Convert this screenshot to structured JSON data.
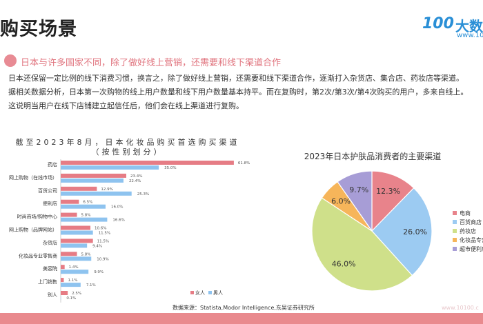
{
  "header": {
    "title": "购买场景",
    "logo_text": "大数",
    "logo_num": "100",
    "logo_url": "www.10"
  },
  "subheading": "日本与许多国家不同，除了做好线上营销，还需要和线下渠道合作",
  "paragraphs": [
    "日本还保留一定比例的线下消费习惯，换言之，除了做好线上营销，还需要和线下渠道合作，逐渐打入杂货店、集合店、药妆店等渠道。",
    "据相关数据分析，日本第一次购物的线上用户数量和线下用户数量基本持平。而在复购时，第2次/第3次/第4次购买的用户，多来自线上。",
    "这说明当用户在线下店铺建立起信任后，他们会在线上渠道进行复购。"
  ],
  "source": "数据来源：Statista,Modor Intelligence,东吴证券研究所",
  "watermark": "www.10100.c",
  "chart_data": [
    {
      "type": "bar",
      "orientation": "horizontal",
      "title": "截至2023年8月，日本化妆品购买首选购买渠道",
      "subtitle": "（按性别划分）",
      "categories": [
        "药店",
        "网上购物（在线市场）",
        "百货公司",
        "便利店",
        "时尚商场/购物中心",
        "网上购物（品牌网站）",
        "杂货店",
        "化妆品专业零售商",
        "美容院",
        "上门销售",
        "别人"
      ],
      "series": [
        {
          "name": "女人",
          "color": "#e67c85",
          "values": [
            61.8,
            23.4,
            12.9,
            6.5,
            5.8,
            10.6,
            11.5,
            5.8,
            1.4,
            1.1,
            2.5
          ]
        },
        {
          "name": "男人",
          "color": "#8ec3ef",
          "values": [
            35.0,
            22.4,
            25.3,
            16.0,
            16.6,
            11.5,
            9.4,
            10.9,
            9.9,
            7.1,
            0.1
          ]
        }
      ],
      "legend": "bottom-right",
      "unit": "%"
    },
    {
      "type": "pie",
      "title": "2023年日本护肤品消费者的主要渠道",
      "categories": [
        "电商",
        "百货商店",
        "药妆店",
        "化妆品专营店",
        "超市便利店"
      ],
      "values": [
        12.3,
        26.0,
        46.0,
        6.0,
        9.7
      ],
      "colors": [
        "#e8838b",
        "#9ccbf2",
        "#cfe08a",
        "#f6b55a",
        "#a79dd6"
      ],
      "legend": "right"
    }
  ]
}
